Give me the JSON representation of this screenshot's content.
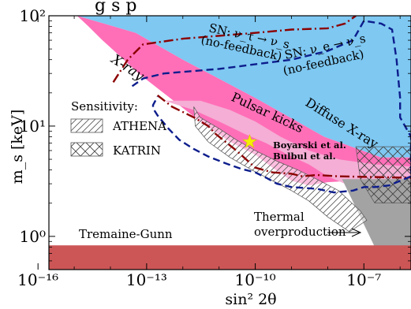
{
  "title_fragment": "g    s     p",
  "chart_data": {
    "type": "area",
    "xscale": "log",
    "yscale": "log",
    "xlabel": "sin² 2θ",
    "ylabel": "m_s [keV]",
    "xlim": [
      2e-16,
      2e-06
    ],
    "ylim": [
      0.5,
      100
    ],
    "x_ticks": [
      1e-16,
      1e-13,
      1e-10,
      1e-07
    ],
    "x_tick_labels": [
      "10⁻¹⁶",
      "10⁻¹³",
      "10⁻¹⁰",
      "10⁻⁷"
    ],
    "y_ticks": [
      1,
      10,
      100
    ],
    "y_tick_labels": [
      "10⁰",
      "10¹",
      "10²"
    ],
    "regions": [
      {
        "name": "Diffuse X-ray",
        "color": "#7ec8f2",
        "points": [
          [
            1.2e-15,
            100
          ],
          [
            2e-06,
            100
          ],
          [
            2e-06,
            5.2
          ],
          [
            3e-07,
            5.2
          ],
          [
            8e-09,
            8
          ],
          [
            1e-10,
            18
          ],
          [
            1e-12,
            40
          ],
          [
            5e-14,
            70
          ]
        ]
      },
      {
        "name": "X-ray",
        "color": "#ff6fb8",
        "points": [
          [
            1.2e-15,
            100
          ],
          [
            5e-14,
            70
          ],
          [
            1e-12,
            40
          ],
          [
            1e-10,
            18
          ],
          [
            8e-09,
            8
          ],
          [
            3e-07,
            5.2
          ],
          [
            2e-06,
            5.2
          ],
          [
            2e-06,
            3.2
          ],
          [
            5e-08,
            3.2
          ],
          [
            1e-08,
            3.1
          ],
          [
            3e-09,
            2.9
          ],
          [
            1e-09,
            3.2
          ],
          [
            3e-10,
            4.2
          ],
          [
            1e-10,
            5.5
          ],
          [
            2e-11,
            7.2
          ],
          [
            3e-12,
            11
          ],
          [
            7e-13,
            16
          ],
          [
            2e-13,
            22
          ],
          [
            6e-14,
            30
          ],
          [
            2e-14,
            42
          ],
          [
            6e-15,
            60
          ],
          [
            2.5e-15,
            80
          ]
        ]
      },
      {
        "name": "Pulsar kicks",
        "color": "#f5aed5",
        "points": [
          [
            3e-13,
            17
          ],
          [
            3e-12,
            17
          ],
          [
            2e-11,
            14
          ],
          [
            1e-10,
            11
          ],
          [
            5e-10,
            8
          ],
          [
            3e-09,
            6
          ],
          [
            2e-08,
            5
          ],
          [
            2e-07,
            4.5
          ],
          [
            2e-06,
            4.3
          ],
          [
            2e-06,
            1.5
          ],
          [
            1e-07,
            1.5
          ],
          [
            3e-08,
            3
          ],
          [
            1e-08,
            3.5
          ],
          [
            3e-09,
            4.5
          ],
          [
            8e-10,
            5.5
          ],
          [
            2e-10,
            7
          ],
          [
            5e-11,
            8.5
          ],
          [
            1e-11,
            11
          ],
          [
            2e-12,
            14
          ]
        ]
      },
      {
        "name": "Thermal overproduction",
        "color": "#a3a3a3",
        "points": [
          [
            2.5e-08,
            3.3
          ],
          [
            2e-06,
            3.3
          ],
          [
            2e-06,
            0.5
          ],
          [
            4e-07,
            0.5
          ],
          [
            2e-07,
            0.8
          ],
          [
            8e-08,
            1.5
          ]
        ]
      },
      {
        "name": "Tremaine-Gunn",
        "color": "#cc5656",
        "points": [
          [
            2e-16,
            0.5
          ],
          [
            2e-06,
            0.5
          ],
          [
            2e-06,
            0.83
          ],
          [
            2e-16,
            0.83
          ]
        ]
      }
    ],
    "sensitivity": [
      {
        "name": "ATHENA",
        "hatch": "diagonal",
        "points": [
          [
            2e-12,
            15
          ],
          [
            3e-12,
            12
          ],
          [
            1e-11,
            9.5
          ],
          [
            3e-11,
            7.5
          ],
          [
            1e-10,
            6
          ],
          [
            4e-10,
            4.8
          ],
          [
            1.5e-09,
            4
          ],
          [
            5e-09,
            3.3
          ],
          [
            2e-08,
            2.6
          ],
          [
            4e-08,
            2.1
          ],
          [
            8e-08,
            1.7
          ],
          [
            1.2e-07,
            1.4
          ],
          [
            4e-08,
            1.1
          ],
          [
            1e-08,
            1.5
          ],
          [
            3e-09,
            2.1
          ],
          [
            1e-09,
            2.6
          ],
          [
            3e-10,
            3.2
          ],
          [
            8e-11,
            4
          ],
          [
            2e-11,
            5.2
          ],
          [
            5e-12,
            7.2
          ],
          [
            2.2e-12,
            10
          ]
        ]
      },
      {
        "name": "KATRIN",
        "hatch": "cross",
        "points": [
          [
            6e-08,
            6.5
          ],
          [
            2e-06,
            6.5
          ],
          [
            2e-06,
            2.0
          ],
          [
            2e-07,
            2.0
          ],
          [
            8e-08,
            3.3
          ]
        ]
      }
    ],
    "lines": [
      {
        "name": "SN: ν_τ → ν_s (no-feedback)",
        "style": "dashdot",
        "color": "#8b0000",
        "points": [
          [
            1.2e-14,
            25
          ],
          [
            3e-14,
            40
          ],
          [
            8e-14,
            55
          ],
          [
            1e-12,
            62
          ],
          [
            1e-10,
            70
          ],
          [
            1e-09,
            75
          ],
          [
            1e-08,
            77
          ],
          [
            3e-08,
            85
          ],
          [
            6e-08,
            100
          ]
        ]
      },
      {
        "name": "Pulsar kicks boundary",
        "style": "dashdot",
        "color": "#8b0000",
        "points": [
          [
            2e-13,
            19
          ],
          [
            5e-13,
            15
          ],
          [
            2e-12,
            12
          ],
          [
            5e-12,
            10
          ],
          [
            8e-12,
            8.5
          ],
          [
            3e-11,
            6
          ],
          [
            1e-10,
            4.2
          ],
          [
            3e-10,
            3.8
          ],
          [
            1e-09,
            3.7
          ],
          [
            2e-09,
            3.5
          ],
          [
            5e-09,
            3.6
          ],
          [
            2e-08,
            3.5
          ],
          [
            2e-06,
            3.4
          ]
        ]
      },
      {
        "name": "SN: ν_e → ν_s (no-feedback)",
        "style": "dashed",
        "color": "#0d1d8c",
        "points": [
          [
            4e-14,
            23
          ],
          [
            8e-14,
            27
          ],
          [
            3e-13,
            30
          ],
          [
            1e-11,
            33
          ],
          [
            1e-09,
            40
          ],
          [
            1e-08,
            48
          ],
          [
            5e-08,
            60
          ],
          [
            1e-07,
            90
          ],
          [
            3e-07,
            85
          ],
          [
            6e-07,
            75
          ],
          [
            8e-07,
            40
          ],
          [
            1e-06,
            18
          ],
          [
            1e-06,
            12
          ],
          [
            2e-06,
            8
          ],
          [
            2e-06,
            3.5
          ],
          [
            5e-07,
            2.9
          ],
          [
            2e-07,
            2.8
          ],
          [
            1e-07,
            2.8
          ],
          [
            5e-08,
            2.6
          ],
          [
            1.5e-08,
            2.5
          ],
          [
            5e-09,
            2.7
          ],
          [
            1e-09,
            2.8
          ],
          [
            4e-10,
            3
          ],
          [
            2e-10,
            3.4
          ],
          [
            1e-10,
            3.8
          ],
          [
            4e-11,
            4.1
          ],
          [
            1.5e-11,
            4.6
          ],
          [
            5e-12,
            5.3
          ],
          [
            2e-12,
            6.2
          ],
          [
            8e-13,
            7.5
          ],
          [
            4e-13,
            9.5
          ],
          [
            2e-13,
            12.5
          ],
          [
            1.5e-13,
            14.5
          ],
          [
            1.5e-13,
            15.5
          ],
          [
            2e-13,
            18.5
          ]
        ]
      }
    ],
    "annotations": {
      "xray": "X-ray",
      "diffuse": "Diffuse X-ray",
      "pulsar": "Pulsar kicks",
      "sn_tau_1": "SN: ν_τ → ν_s",
      "sn_tau_2": "(no-feedback)",
      "sn_e_1": "SN: ν_e → ν_s",
      "sn_e_2": "(no-feedback)",
      "boyarski_1": "Boyarski et al.",
      "boyarski_2": "Bulbul et al.",
      "thermal_1": "Thermal",
      "thermal_2": "overproduction",
      "tremaine": "Tremaine-Gunn",
      "sensitivity_title": "Sensitivity:",
      "legend_athena": "ATHENA",
      "legend_katrin": "KATRIN"
    },
    "star": {
      "x": 7e-11,
      "y": 7.2,
      "color": "#f4f000"
    }
  }
}
